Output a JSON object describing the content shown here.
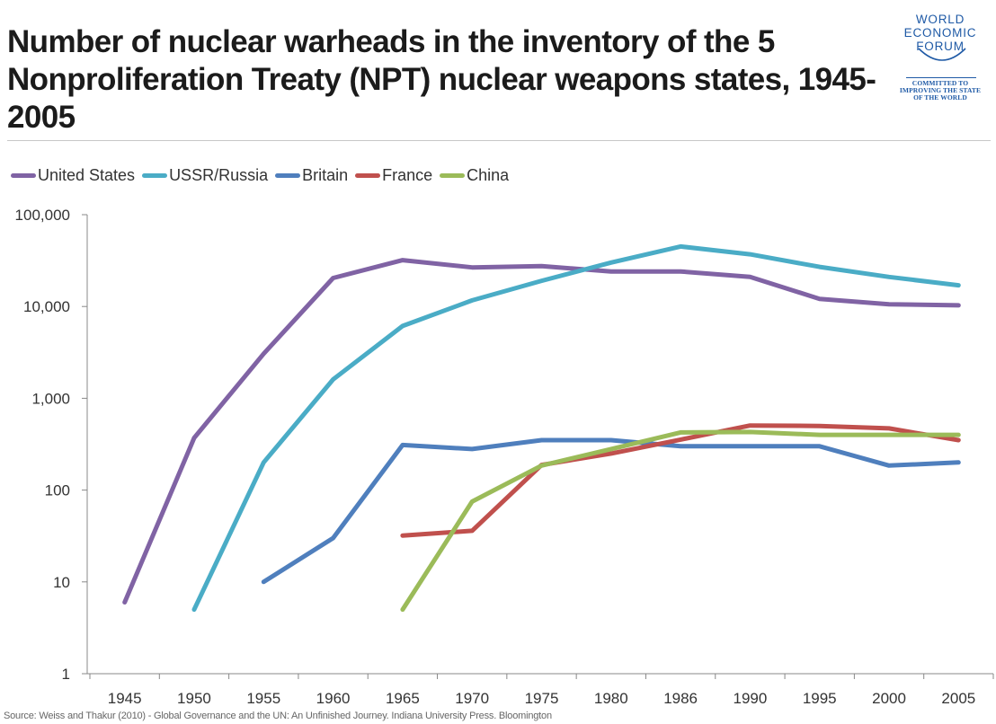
{
  "title": "Number of nuclear warheads in the inventory of the 5 Nonproliferation Treaty (NPT) nuclear weapons states, 1945-2005",
  "logo": {
    "lines": [
      "WORLD",
      "ECONOMIC",
      "FORUM"
    ],
    "tagline": [
      "COMMITTED TO",
      "IMPROVING THE STATE",
      "OF THE WORLD"
    ],
    "color": "#1f5aa6"
  },
  "source": "Source: Weiss and Thakur (2010) - Global Governance and the UN: An Unfinished Journey. Indiana University Press. Bloomington",
  "chart_data": {
    "type": "line",
    "categories": [
      "1945",
      "1950",
      "1955",
      "1960",
      "1965",
      "1970",
      "1975",
      "1980",
      "1986",
      "1990",
      "1995",
      "2000",
      "2005"
    ],
    "y_scale": "log",
    "ylim": [
      1,
      100000
    ],
    "y_ticks": [
      {
        "value": 1,
        "label": "1"
      },
      {
        "value": 10,
        "label": "10"
      },
      {
        "value": 100,
        "label": "100"
      },
      {
        "value": 1000,
        "label": "1,000"
      },
      {
        "value": 10000,
        "label": "10,000"
      },
      {
        "value": 100000,
        "label": "100,000"
      }
    ],
    "grid": false,
    "legend_position": "top-left",
    "series": [
      {
        "name": "United States",
        "color": "#8063a4",
        "values": [
          6,
          370,
          3057,
          20434,
          31982,
          26662,
          27519,
          24104,
          24104,
          21004,
          12100,
          10577,
          10295
        ]
      },
      {
        "name": "USSR/Russia",
        "color": "#4aacc6",
        "values": [
          null,
          5,
          200,
          1605,
          6129,
          11643,
          19055,
          30062,
          45000,
          37000,
          27000,
          21000,
          17000
        ]
      },
      {
        "name": "Britain",
        "color": "#4f7fbd",
        "values": [
          null,
          null,
          10,
          30,
          310,
          280,
          350,
          350,
          300,
          300,
          300,
          185,
          200
        ]
      },
      {
        "name": "France",
        "color": "#c0504d",
        "values": [
          null,
          null,
          null,
          null,
          32,
          36,
          188,
          250,
          355,
          505,
          500,
          470,
          350
        ]
      },
      {
        "name": "China",
        "color": "#9bbb59",
        "values": [
          null,
          null,
          null,
          null,
          5,
          75,
          185,
          280,
          425,
          430,
          400,
          400,
          400
        ]
      }
    ]
  }
}
